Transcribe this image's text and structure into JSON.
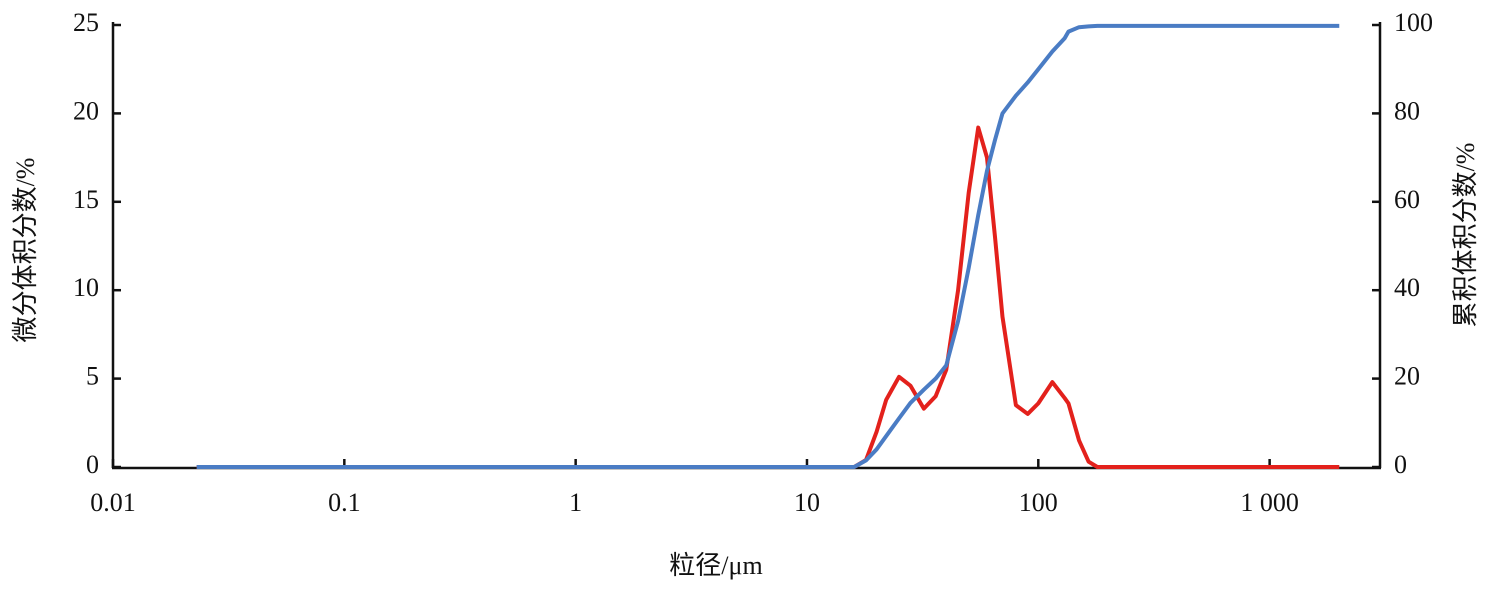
{
  "chart_data": {
    "type": "line",
    "x_label": "粒径/μm",
    "y_label": "微分体积分数/%",
    "y2_label": "累积体积分数/%",
    "x": [
      0.023,
      0.1,
      1,
      10,
      16,
      18,
      20,
      22,
      25,
      28,
      32,
      36,
      40,
      45,
      50,
      55,
      60,
      65,
      70,
      80,
      90,
      100,
      115,
      130,
      135,
      150,
      165,
      180,
      200,
      500,
      1000,
      2000
    ],
    "series": [
      {
        "name": "微分体积分数",
        "color": "#e3211c",
        "axis": "y",
        "values": [
          0,
          0,
          0,
          0,
          0,
          0.4,
          2,
          3.8,
          5.1,
          4.6,
          3.3,
          4,
          5.5,
          10,
          15.5,
          19.2,
          17.5,
          13,
          8.5,
          3.5,
          3,
          3.6,
          4.8,
          3.9,
          3.6,
          1.5,
          0.3,
          0,
          0,
          0,
          0,
          0
        ]
      },
      {
        "name": "累积体积分数",
        "color": "#4a7cc4",
        "axis": "y2",
        "values": [
          0,
          0,
          0,
          0,
          0,
          1.5,
          4,
          7,
          11,
          14.5,
          17.5,
          20,
          23,
          33,
          45,
          57,
          67,
          74,
          80,
          84,
          87,
          90,
          94,
          97,
          98.5,
          99.5,
          99.7,
          99.8,
          99.8,
          99.8,
          99.8,
          99.8
        ]
      }
    ],
    "x_log": true,
    "xlim": [
      0.01,
      3000
    ],
    "xticks": [
      0.01,
      0.1,
      1,
      10,
      100,
      {
        "value": 1000,
        "label": "1 000"
      }
    ],
    "ylim": [
      0,
      25
    ],
    "yticks": [
      0,
      5,
      10,
      15,
      20,
      25
    ],
    "y2lim": [
      0,
      100
    ],
    "y2ticks": [
      0,
      20,
      40,
      60,
      80,
      100
    ],
    "grid": false
  }
}
